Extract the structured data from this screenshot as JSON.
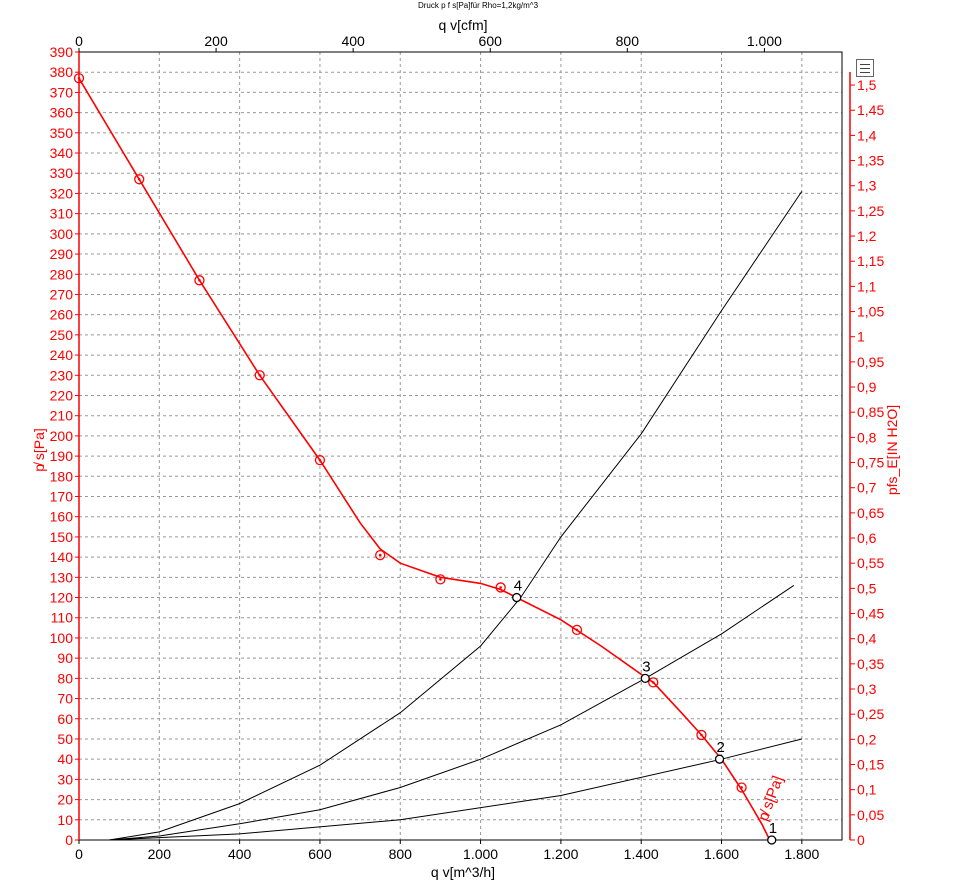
{
  "chart_data": {
    "type": "line",
    "title": "Druck p f s[Pa]für Rho=1,2kg/m^3",
    "xlabel": "q v[m^3/h]",
    "x2label": "q v[cfm]",
    "ylabel": "p̸ s[Pa]",
    "y2label": "pfs_E[IN H2O]",
    "xlim": [
      0,
      1900
    ],
    "ylim": [
      0,
      390
    ],
    "x_ticks": [
      0,
      200,
      400,
      600,
      800,
      1000,
      1200,
      1400,
      1600,
      1800
    ],
    "x_tick_labels": [
      "0",
      "200",
      "400",
      "600",
      "800",
      "1.000",
      "1.200",
      "1.400",
      "1.600",
      "1.800"
    ],
    "x2_ticks": [
      0,
      200,
      400,
      600,
      800,
      1000
    ],
    "x2_tick_labels": [
      "0",
      "200",
      "400",
      "600",
      "800",
      "1.000"
    ],
    "y_ticks": [
      0,
      10,
      20,
      30,
      40,
      50,
      60,
      70,
      80,
      90,
      100,
      110,
      120,
      130,
      140,
      150,
      160,
      170,
      180,
      190,
      200,
      210,
      220,
      230,
      240,
      250,
      260,
      270,
      280,
      290,
      300,
      310,
      320,
      330,
      340,
      350,
      360,
      370,
      380,
      390
    ],
    "y2_ticks": [
      0,
      0.05,
      0.1,
      0.15,
      0.2,
      0.25,
      0.3,
      0.35,
      0.4,
      0.45,
      0.5,
      0.55,
      0.6,
      0.65,
      0.7,
      0.75,
      0.8,
      0.85,
      0.9,
      0.95,
      1,
      1.05,
      1.1,
      1.15,
      1.2,
      1.25,
      1.3,
      1.35,
      1.4,
      1.45,
      1.5
    ],
    "y2_tick_labels": [
      "0",
      "0,05",
      "0,1",
      "0,15",
      "0,2",
      "0,25",
      "0,3",
      "0,35",
      "0,4",
      "0,45",
      "0,5",
      "0,55",
      "0,6",
      "0,65",
      "0,7",
      "0,75",
      "0,8",
      "0,85",
      "0,9",
      "0,95",
      "1",
      "1,05",
      "1,1",
      "1,15",
      "1,2",
      "1,25",
      "1,3",
      "1,35",
      "1,4",
      "1,45",
      "1,5"
    ],
    "grid": true,
    "series": [
      {
        "name": "p̸ s[Pa]",
        "color": "#ff0000",
        "x": [
          0,
          150,
          300,
          450,
          600,
          700,
          750,
          800,
          900,
          1000,
          1050,
          1100,
          1200,
          1300,
          1400,
          1430,
          1500,
          1550,
          1600,
          1650,
          1700,
          1720
        ],
        "y": [
          377,
          327,
          277,
          230,
          188,
          157,
          144,
          137,
          130,
          127,
          124,
          119,
          109,
          96,
          82,
          78,
          63,
          52,
          40,
          25,
          8,
          0
        ],
        "markers_x": [
          0,
          150,
          300,
          450,
          600,
          750,
          900,
          1050,
          1240,
          1430,
          1550,
          1650
        ],
        "markers_y": [
          377,
          327,
          277,
          230,
          188,
          141,
          129,
          125,
          104,
          78,
          52,
          26
        ]
      },
      {
        "name": "",
        "color": "#000000",
        "x": [
          75,
          200,
          400,
          600,
          800,
          1000,
          1100,
          1200,
          1400,
          1600,
          1800
        ],
        "y": [
          0,
          4,
          18,
          37,
          63,
          96,
          120,
          150,
          201,
          262,
          321
        ]
      },
      {
        "name": "",
        "color": "#000000",
        "x": [
          75,
          200,
          400,
          600,
          800,
          1000,
          1200,
          1410,
          1600,
          1780
        ],
        "y": [
          0,
          2,
          8,
          15,
          26,
          40,
          57,
          80,
          102,
          126
        ]
      },
      {
        "name": "",
        "color": "#000000",
        "x": [
          75,
          400,
          800,
          1200,
          1600,
          1800
        ],
        "y": [
          0,
          3,
          10,
          22,
          40,
          50
        ]
      }
    ],
    "operating_points": [
      {
        "label": "4",
        "x": 1090,
        "y": 120
      },
      {
        "label": "3",
        "x": 1410,
        "y": 80
      },
      {
        "label": "2",
        "x": 1595,
        "y": 40
      },
      {
        "label": "1",
        "x": 1725,
        "y": 0
      }
    ],
    "curve_label": "p̸ s[Pa]"
  }
}
